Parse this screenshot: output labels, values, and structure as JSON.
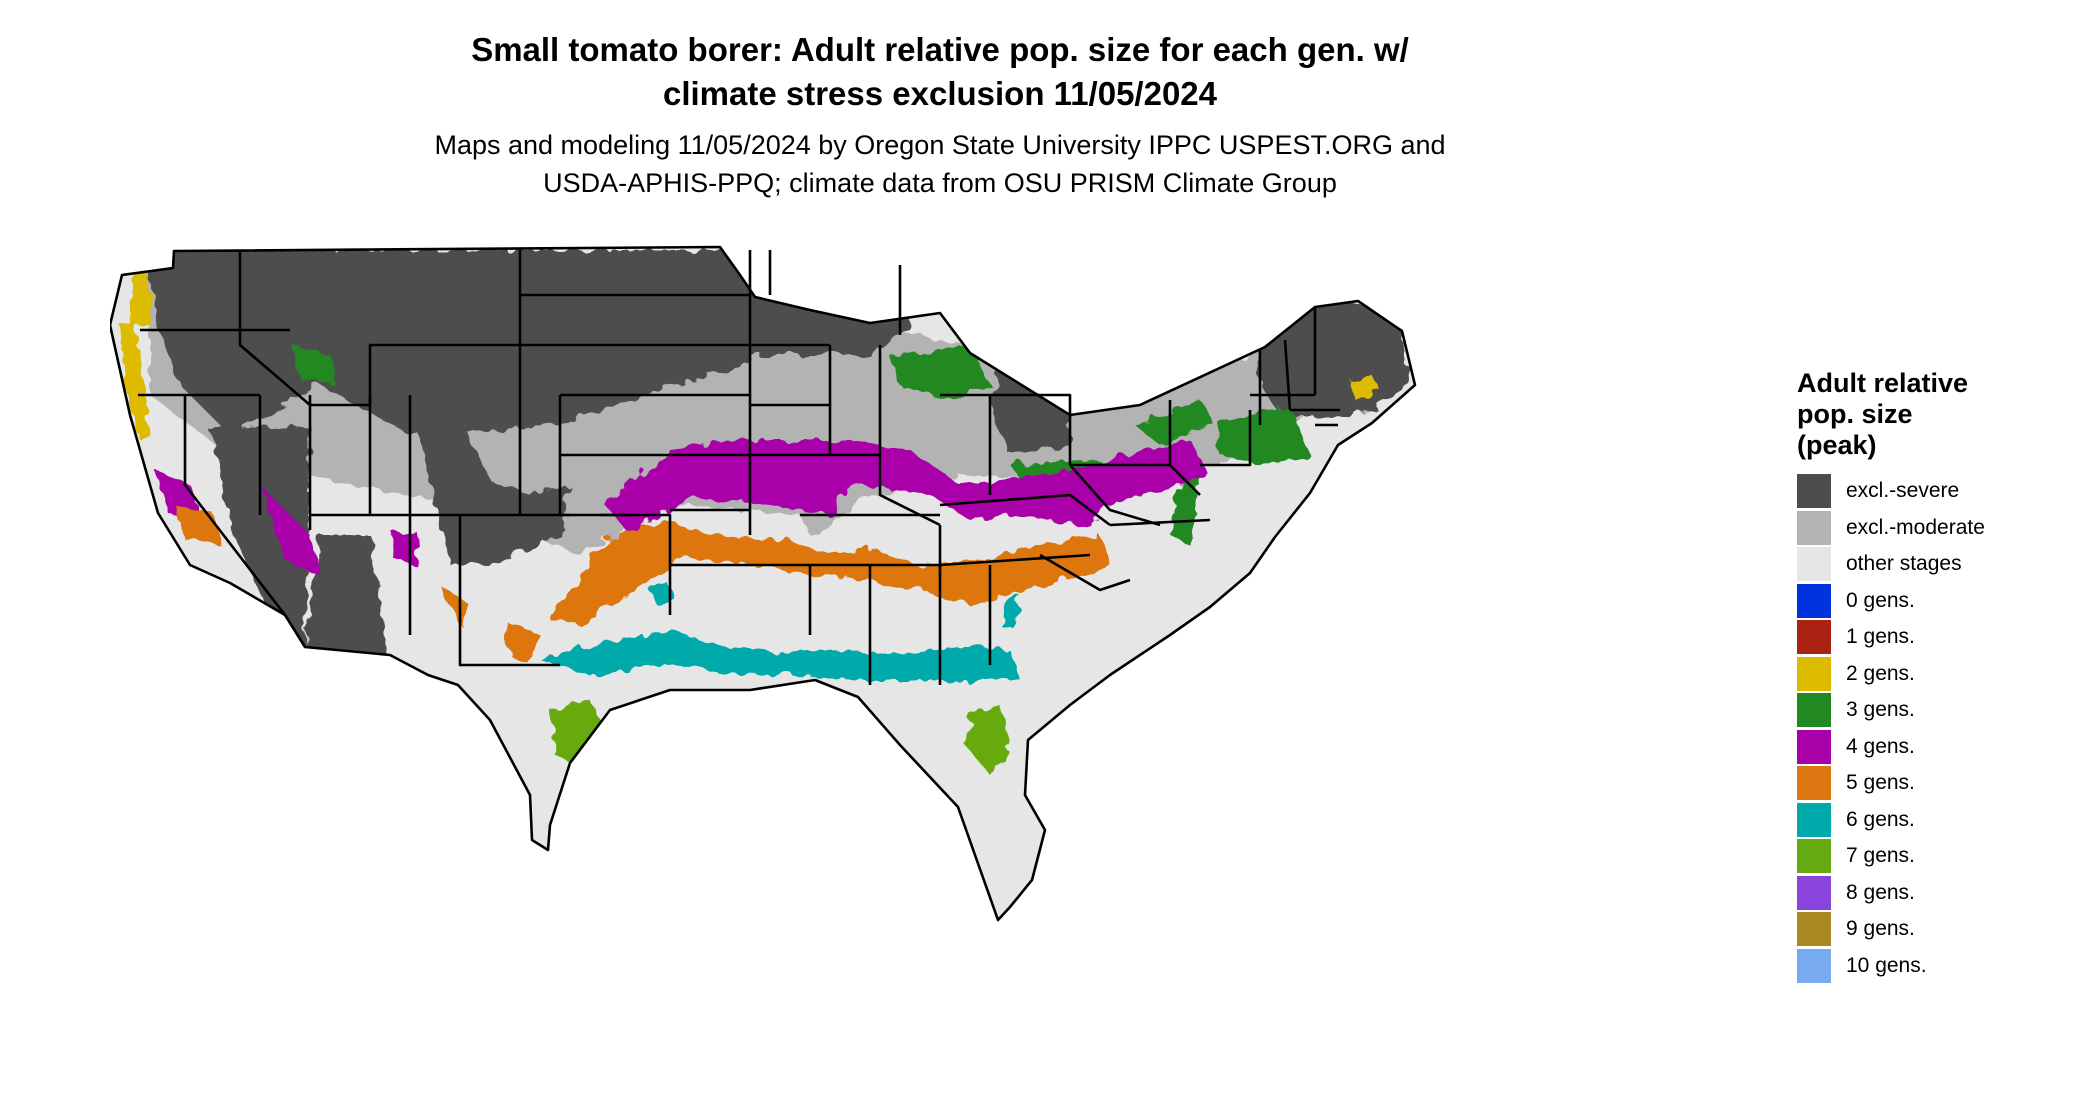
{
  "title": {
    "line1": "Small tomato borer: Adult relative pop. size for each gen. w/",
    "line2": "climate stress exclusion 11/05/2024"
  },
  "subtitle": {
    "line1": "Maps and modeling 11/05/2024 by Oregon State University IPPC USPEST.ORG and",
    "line2": "USDA-APHIS-PPQ; climate data from OSU PRISM Climate Group"
  },
  "legend": {
    "title_line1": "Adult relative",
    "title_line2": "pop. size",
    "title_line3": "(peak)",
    "items": [
      {
        "label": "excl.-severe",
        "color": "#4d4d4d"
      },
      {
        "label": "excl.-moderate",
        "color": "#b3b3b3"
      },
      {
        "label": "other stages",
        "color": "#e6e6e6"
      },
      {
        "label": "0 gens.",
        "color": "#0033dd"
      },
      {
        "label": "1 gens.",
        "color": "#aa2211"
      },
      {
        "label": "2 gens.",
        "color": "#ddbb00"
      },
      {
        "label": "3 gens.",
        "color": "#228822"
      },
      {
        "label": "4 gens.",
        "color": "#aa00aa"
      },
      {
        "label": "5 gens.",
        "color": "#dd7711"
      },
      {
        "label": "6 gens.",
        "color": "#00aaaa"
      },
      {
        "label": "7 gens.",
        "color": "#66aa11"
      },
      {
        "label": "8 gens.",
        "color": "#8844dd"
      },
      {
        "label": "9 gens.",
        "color": "#aa8822"
      },
      {
        "label": "10 gens.",
        "color": "#77aaee"
      }
    ]
  }
}
